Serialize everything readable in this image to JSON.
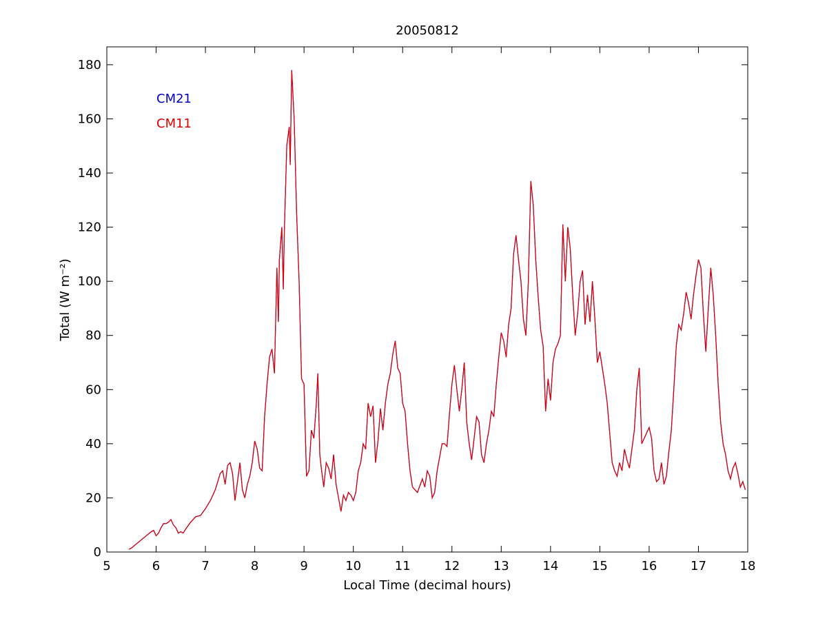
{
  "chart_data": {
    "type": "line",
    "title": "20050812",
    "x_label": "Local Time (decimal hours)",
    "y_label": "Total (W m⁻²)",
    "x": [
      5.45,
      5.5,
      5.6,
      5.7,
      5.8,
      5.9,
      5.95,
      6.0,
      6.05,
      6.1,
      6.15,
      6.2,
      6.25,
      6.3,
      6.35,
      6.4,
      6.45,
      6.5,
      6.55,
      6.6,
      6.7,
      6.8,
      6.9,
      7.0,
      7.1,
      7.2,
      7.3,
      7.35,
      7.4,
      7.45,
      7.5,
      7.55,
      7.6,
      7.65,
      7.7,
      7.75,
      7.8,
      7.85,
      7.9,
      7.95,
      8.0,
      8.05,
      8.1,
      8.15,
      8.2,
      8.25,
      8.3,
      8.35,
      8.4,
      8.45,
      8.48,
      8.5,
      8.55,
      8.58,
      8.6,
      8.65,
      8.7,
      8.72,
      8.75,
      8.8,
      8.85,
      8.9,
      8.95,
      9.0,
      9.05,
      9.1,
      9.15,
      9.2,
      9.25,
      9.28,
      9.32,
      9.35,
      9.4,
      9.45,
      9.5,
      9.55,
      9.6,
      9.65,
      9.7,
      9.75,
      9.8,
      9.85,
      9.9,
      9.95,
      10.0,
      10.05,
      10.1,
      10.15,
      10.2,
      10.25,
      10.3,
      10.35,
      10.4,
      10.45,
      10.5,
      10.55,
      10.6,
      10.65,
      10.7,
      10.75,
      10.8,
      10.85,
      10.9,
      10.95,
      11.0,
      11.05,
      11.1,
      11.15,
      11.2,
      11.3,
      11.4,
      11.45,
      11.5,
      11.55,
      11.6,
      11.65,
      11.7,
      11.75,
      11.8,
      11.85,
      11.9,
      11.95,
      12.0,
      12.05,
      12.1,
      12.15,
      12.2,
      12.25,
      12.3,
      12.35,
      12.4,
      12.45,
      12.5,
      12.55,
      12.6,
      12.65,
      12.7,
      12.75,
      12.8,
      12.85,
      12.9,
      12.95,
      13.0,
      13.05,
      13.1,
      13.15,
      13.2,
      13.25,
      13.3,
      13.35,
      13.4,
      13.45,
      13.5,
      13.55,
      13.6,
      13.65,
      13.7,
      13.75,
      13.8,
      13.85,
      13.9,
      13.95,
      14.0,
      14.05,
      14.1,
      14.15,
      14.2,
      14.25,
      14.3,
      14.35,
      14.4,
      14.45,
      14.5,
      14.55,
      14.6,
      14.65,
      14.7,
      14.75,
      14.8,
      14.85,
      14.9,
      14.95,
      15.0,
      15.05,
      15.1,
      15.15,
      15.2,
      15.25,
      15.3,
      15.35,
      15.4,
      15.45,
      15.5,
      15.55,
      15.6,
      15.65,
      15.7,
      15.75,
      15.8,
      15.85,
      15.9,
      15.95,
      16.0,
      16.05,
      16.1,
      16.15,
      16.2,
      16.25,
      16.3,
      16.35,
      16.4,
      16.45,
      16.5,
      16.55,
      16.6,
      16.65,
      16.7,
      16.75,
      16.8,
      16.85,
      16.9,
      16.95,
      17.0,
      17.05,
      17.1,
      17.15,
      17.2,
      17.25,
      17.3,
      17.35,
      17.4,
      17.45,
      17.5,
      17.55,
      17.6,
      17.65,
      17.7,
      17.75,
      17.8,
      17.85,
      17.9,
      17.95
    ],
    "series": [
      {
        "name": "CM21",
        "color": "#0000c8",
        "values": [
          1,
          1.5,
          3,
          4.5,
          6,
          7.5,
          8,
          6,
          7,
          9,
          10.5,
          10.5,
          11,
          12,
          10,
          9,
          7,
          7.5,
          7,
          8.5,
          11,
          13,
          13.5,
          16,
          19,
          23,
          29,
          30,
          25,
          32,
          33,
          29,
          19,
          26,
          33,
          23,
          20,
          25,
          28,
          33,
          41,
          38,
          31,
          30,
          50,
          62,
          72,
          75,
          66,
          105,
          85,
          108,
          120,
          97,
          118,
          150,
          157,
          143,
          178,
          160,
          125,
          100,
          64,
          62,
          28,
          30,
          45,
          42,
          55,
          66,
          36,
          31,
          24,
          33,
          31,
          27,
          36,
          25,
          20,
          15,
          21,
          19,
          22,
          21,
          19,
          22,
          30,
          33,
          40,
          38,
          55,
          50,
          54,
          33,
          41,
          53,
          45,
          55,
          62,
          66,
          73,
          78,
          68,
          66,
          55,
          52,
          40,
          30,
          24,
          22,
          27,
          24,
          30,
          28,
          20,
          22,
          30,
          35,
          40,
          40,
          39,
          51,
          62,
          69,
          60,
          52,
          60,
          70,
          48,
          40,
          34,
          42,
          50,
          48,
          36,
          33,
          40,
          45,
          52,
          50,
          62,
          72,
          81,
          78,
          72,
          84,
          90,
          110,
          117,
          108,
          100,
          86,
          80,
          100,
          137,
          128,
          108,
          94,
          82,
          76,
          52,
          64,
          56,
          70,
          75,
          77,
          80,
          121,
          100,
          120,
          112,
          95,
          80,
          88,
          100,
          104,
          84,
          95,
          85,
          100,
          86,
          70,
          74,
          68,
          62,
          55,
          44,
          33,
          30,
          28,
          33,
          30,
          38,
          34,
          31,
          38,
          45,
          60,
          68,
          40,
          42,
          44,
          46,
          42,
          30,
          26,
          27,
          33,
          25,
          28,
          37,
          45,
          60,
          76,
          84,
          82,
          88,
          96,
          92,
          86,
          95,
          102,
          108,
          105,
          88,
          74,
          90,
          105,
          95,
          80,
          62,
          48,
          40,
          36,
          30,
          27,
          31,
          33,
          29,
          24,
          26,
          23
        ]
      },
      {
        "name": "CM11",
        "color": "#e00000",
        "values": [
          1,
          1.5,
          3,
          4.5,
          6,
          7.5,
          8,
          6,
          7,
          9,
          10.5,
          10.5,
          11,
          12,
          10,
          9,
          7,
          7.5,
          7,
          8.5,
          11,
          13,
          13.5,
          16,
          19,
          23,
          29,
          30,
          25,
          32,
          33,
          29,
          19,
          26,
          33,
          23,
          20,
          25,
          28,
          33,
          41,
          38,
          31,
          30,
          50,
          62,
          72,
          75,
          66,
          105,
          85,
          108,
          120,
          97,
          118,
          150,
          157,
          143,
          178,
          160,
          125,
          100,
          64,
          62,
          28,
          30,
          45,
          42,
          55,
          66,
          36,
          31,
          24,
          33,
          31,
          27,
          36,
          25,
          20,
          15,
          21,
          19,
          22,
          21,
          19,
          22,
          30,
          33,
          40,
          38,
          55,
          50,
          54,
          33,
          41,
          53,
          45,
          55,
          62,
          66,
          73,
          78,
          68,
          66,
          55,
          52,
          40,
          30,
          24,
          22,
          27,
          24,
          30,
          28,
          20,
          22,
          30,
          35,
          40,
          40,
          39,
          51,
          62,
          69,
          60,
          52,
          60,
          70,
          48,
          40,
          34,
          42,
          50,
          48,
          36,
          33,
          40,
          45,
          52,
          50,
          62,
          72,
          81,
          78,
          72,
          84,
          90,
          110,
          117,
          108,
          100,
          86,
          80,
          100,
          137,
          128,
          108,
          94,
          82,
          76,
          52,
          64,
          56,
          70,
          75,
          77,
          80,
          121,
          100,
          120,
          112,
          95,
          80,
          88,
          100,
          104,
          84,
          95,
          85,
          100,
          86,
          70,
          74,
          68,
          62,
          55,
          44,
          33,
          30,
          28,
          33,
          30,
          38,
          34,
          31,
          38,
          45,
          60,
          68,
          40,
          42,
          44,
          46,
          42,
          30,
          26,
          27,
          33,
          25,
          28,
          37,
          45,
          60,
          76,
          84,
          82,
          88,
          96,
          92,
          86,
          95,
          102,
          108,
          105,
          88,
          74,
          90,
          105,
          95,
          80,
          62,
          48,
          40,
          36,
          30,
          27,
          31,
          33,
          29,
          24,
          26,
          23
        ]
      }
    ],
    "xlim": [
      5,
      18
    ],
    "xticks": [
      5,
      6,
      7,
      8,
      9,
      10,
      11,
      12,
      13,
      14,
      15,
      16,
      17,
      18
    ],
    "ylim": [
      0,
      186.6
    ],
    "yticks": [
      0,
      20,
      40,
      60,
      80,
      100,
      120,
      140,
      160,
      180
    ]
  }
}
